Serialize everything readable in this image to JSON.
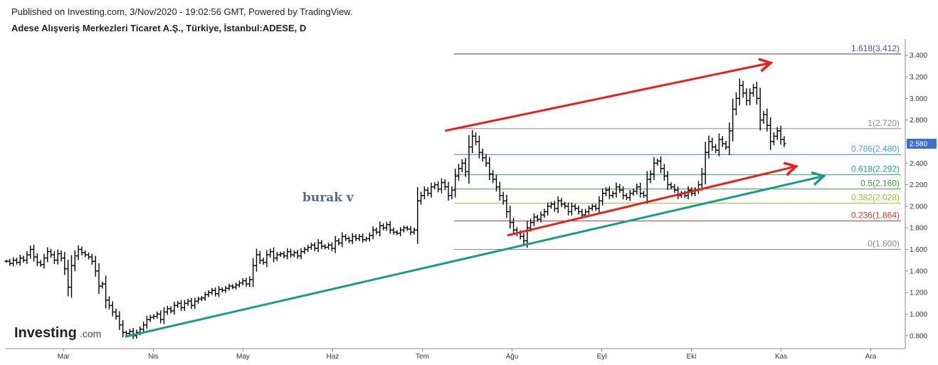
{
  "header": {
    "published": "Published on Investing.com, 3/Nov/2020 - 19:02:56 GMT, Powered by TradingView.",
    "symbol": "Adese Alışveriş Merkezleri Ticaret A.Ş., Türkiye, İstanbul:ADESE, D"
  },
  "logo": {
    "main": "Investing",
    "sub": ".com"
  },
  "chart_data": {
    "type": "line",
    "x_ticks": [
      "Mar",
      "Nis",
      "May",
      "Haz",
      "Tem",
      "Ağu",
      "Eyl",
      "Eki",
      "Kas",
      "Ara"
    ],
    "y_ticks": [
      "0.800",
      "1.000",
      "1.200",
      "1.400",
      "1.600",
      "1.800",
      "2.000",
      "2.200",
      "2.400",
      "2.600",
      "2.800",
      "3.000",
      "3.200",
      "3.400"
    ],
    "ylim": [
      0.68,
      3.55
    ],
    "last_price": "2.580",
    "annotation": "burak v",
    "colors": {
      "price": "#000000",
      "up_channel": "#e8201c",
      "support": "#1a9b85",
      "price_tag": "#3d6fd0"
    },
    "series": [
      {
        "values": [
          1.49,
          1.47,
          1.5,
          1.48,
          1.52,
          1.5,
          1.55,
          1.6,
          1.53,
          1.48,
          1.46,
          1.52,
          1.58,
          1.55,
          1.5,
          1.56,
          1.52,
          1.42,
          1.25,
          1.45,
          1.54,
          1.6,
          1.57,
          1.55,
          1.53,
          1.49,
          1.4,
          1.26,
          1.28,
          1.13,
          1.08,
          1.02,
          0.98,
          0.9,
          0.83,
          0.82,
          0.84,
          0.8,
          0.83,
          0.86,
          0.9,
          0.95,
          0.97,
          0.98,
          1.0,
          0.95,
          1.02,
          1.05,
          1.03,
          1.08,
          1.1,
          1.06,
          1.1,
          1.12,
          1.08,
          1.12,
          1.14,
          1.15,
          1.18,
          1.2,
          1.22,
          1.19,
          1.23,
          1.22,
          1.24,
          1.26,
          1.25,
          1.27,
          1.29,
          1.31,
          1.28,
          1.32,
          1.45,
          1.55,
          1.5,
          1.48,
          1.55,
          1.58,
          1.52,
          1.55,
          1.56,
          1.54,
          1.58,
          1.55,
          1.57,
          1.54,
          1.58,
          1.6,
          1.62,
          1.64,
          1.61,
          1.66,
          1.63,
          1.62,
          1.64,
          1.61,
          1.68,
          1.66,
          1.72,
          1.7,
          1.68,
          1.72,
          1.7,
          1.72,
          1.69,
          1.7,
          1.73,
          1.78,
          1.76,
          1.82,
          1.8,
          1.83,
          1.78,
          1.76,
          1.75,
          1.78,
          1.8,
          1.79,
          1.76,
          1.78,
          2.05,
          2.1,
          2.15,
          2.12,
          2.18,
          2.2,
          2.16,
          2.22,
          2.18,
          2.1,
          2.15,
          2.28,
          2.35,
          2.4,
          2.32,
          2.55,
          2.65,
          2.6,
          2.5,
          2.45,
          2.4,
          2.3,
          2.25,
          2.18,
          2.1,
          2.05,
          1.95,
          1.85,
          1.78,
          1.75,
          1.72,
          1.68,
          1.8,
          1.85,
          1.9,
          1.88,
          1.92,
          1.95,
          2.0,
          2.02,
          1.98,
          2.05,
          2.02,
          2.0,
          1.95,
          2.0,
          1.98,
          1.95,
          1.92,
          1.95,
          1.98,
          2.0,
          1.98,
          2.05,
          2.12,
          2.15,
          2.1,
          2.12,
          2.18,
          2.15,
          2.1,
          2.08,
          2.12,
          2.14,
          2.18,
          2.12,
          2.1,
          2.25,
          2.3,
          2.4,
          2.42,
          2.35,
          2.28,
          2.2,
          2.18,
          2.15,
          2.1,
          2.12,
          2.1,
          2.15,
          2.12,
          2.15,
          2.2,
          2.3,
          2.5,
          2.6,
          2.55,
          2.52,
          2.62,
          2.58,
          2.55,
          2.7,
          2.9,
          3.0,
          3.12,
          3.05,
          2.98,
          3.05,
          3.1,
          3.0,
          2.8,
          2.85,
          2.75,
          2.6,
          2.65,
          2.7,
          2.62,
          2.58
        ]
      }
    ],
    "fibonacci": [
      {
        "label": "1.618(3.412)",
        "value": 3.412,
        "color": "#4a4fb8",
        "line": "#444444"
      },
      {
        "label": "1(2.720)",
        "value": 2.72,
        "color": "#8a8a8a",
        "line": "#8a8a8a"
      },
      {
        "label": "0.786(2.480)",
        "value": 2.48,
        "color": "#4aa3d6",
        "line": "#3b7fc0"
      },
      {
        "label": "0.618(2.292)",
        "value": 2.292,
        "color": "#1fa67e",
        "line": "#1fa67e"
      },
      {
        "label": "0.5(2.160)",
        "value": 2.16,
        "color": "#3d9a3d",
        "line": "#3d9a3d"
      },
      {
        "label": "0.382(2.028)",
        "value": 2.028,
        "color": "#9aba35",
        "line": "#9aba35"
      },
      {
        "label": "0.236(1.864)",
        "value": 1.864,
        "color": "#d03a3a",
        "line": "#d03a3a"
      },
      {
        "label": "0(1.600)",
        "value": 1.6,
        "color": "#8a8a8a",
        "line": "#8a8a8a"
      }
    ],
    "trendlines": [
      {
        "name": "upper-channel",
        "color": "#e8201c",
        "from": [
          0.4885,
          2.7
        ],
        "to": [
          0.8505,
          3.33
        ],
        "arrow": true
      },
      {
        "name": "lower-channel",
        "color": "#e8201c",
        "from": [
          0.5577,
          1.73
        ],
        "to": [
          0.8787,
          2.37
        ],
        "arrow": true
      },
      {
        "name": "support",
        "color": "#1a9b85",
        "from": [
          0.1327,
          0.79
        ],
        "to": [
          0.9094,
          2.28
        ],
        "arrow": true
      }
    ]
  }
}
